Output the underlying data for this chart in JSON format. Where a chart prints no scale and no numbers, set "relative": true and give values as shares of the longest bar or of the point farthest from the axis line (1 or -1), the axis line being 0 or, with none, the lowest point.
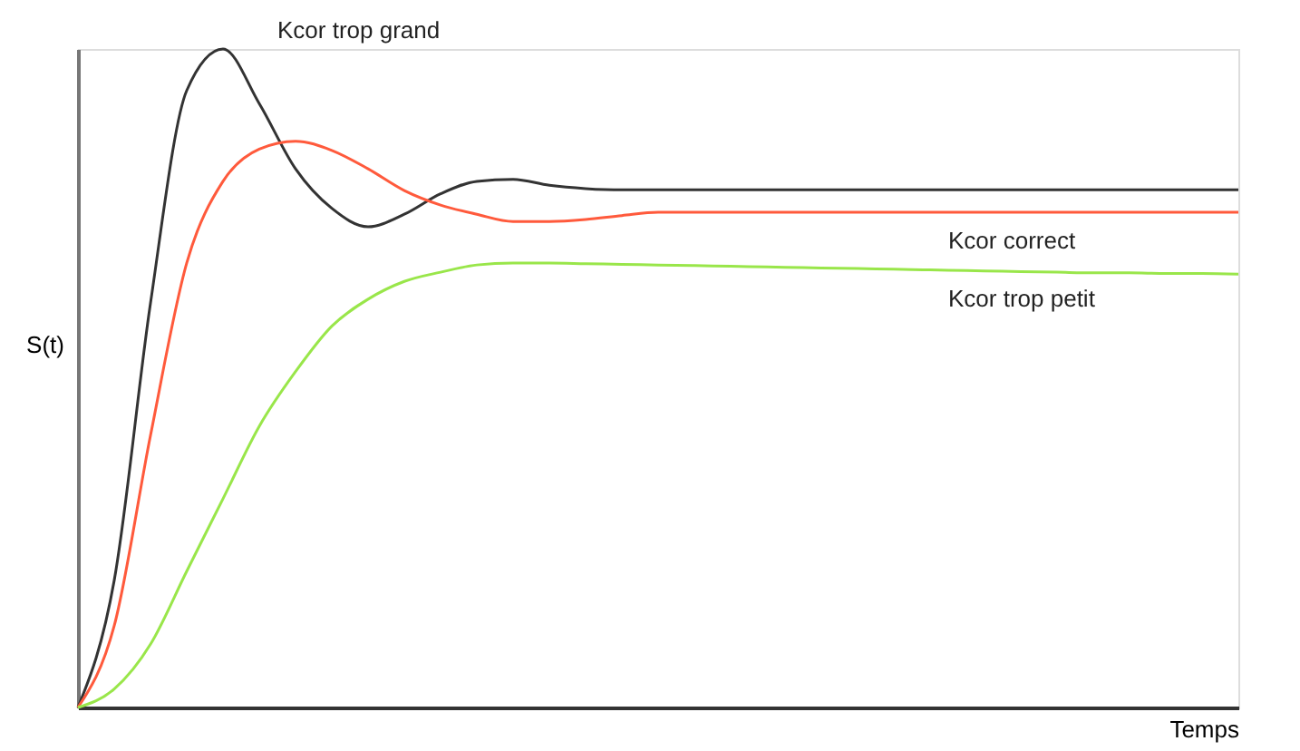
{
  "chart_data": {
    "type": "line",
    "relative": true,
    "xlabel": "Temps",
    "ylabel": "S(t)",
    "grid": false,
    "legend": false,
    "marker": "none",
    "line_style": "solid",
    "categories": [
      null,
      null,
      null,
      null,
      null,
      null,
      null,
      null,
      null,
      null,
      null,
      null,
      null,
      null,
      null,
      null,
      null,
      null,
      null,
      null,
      null,
      null,
      null,
      null,
      null,
      null,
      null,
      null,
      null,
      null,
      null,
      null,
      null
    ],
    "series": [
      {
        "name": "Kcor trop grand",
        "color": "#333333",
        "values": [
          0,
          0.193,
          0.614,
          0.937,
          1.0,
          0.917,
          0.818,
          0.758,
          0.73,
          0.749,
          0.78,
          0.799,
          0.802,
          0.793,
          0.788,
          0.786,
          0.786,
          0.786,
          0.786,
          0.786,
          0.786,
          0.786,
          0.786,
          0.786,
          0.786,
          0.786,
          0.786,
          0.786,
          0.786,
          0.786,
          0.786,
          0.786,
          0.786
        ]
      },
      {
        "name": "Kcor correct",
        "color": "#ff5a3c",
        "values": [
          0,
          0.124,
          0.413,
          0.675,
          0.799,
          0.848,
          0.86,
          0.846,
          0.818,
          0.785,
          0.763,
          0.749,
          0.738,
          0.738,
          0.741,
          0.747,
          0.752,
          0.752,
          0.752,
          0.752,
          0.752,
          0.752,
          0.752,
          0.752,
          0.752,
          0.752,
          0.752,
          0.752,
          0.752,
          0.752,
          0.752,
          0.752,
          0.752
        ]
      },
      {
        "name": "Kcor trop petit",
        "color": "#99e64a",
        "values": [
          0,
          0.028,
          0.096,
          0.207,
          0.317,
          0.427,
          0.51,
          0.579,
          0.62,
          0.647,
          0.661,
          0.672,
          0.675,
          0.675,
          0.674,
          0.673,
          0.672,
          0.671,
          0.67,
          0.669,
          0.668,
          0.667,
          0.666,
          0.665,
          0.664,
          0.663,
          0.662,
          0.661,
          0.66,
          0.66,
          0.659,
          0.659,
          0.658
        ]
      }
    ]
  }
}
